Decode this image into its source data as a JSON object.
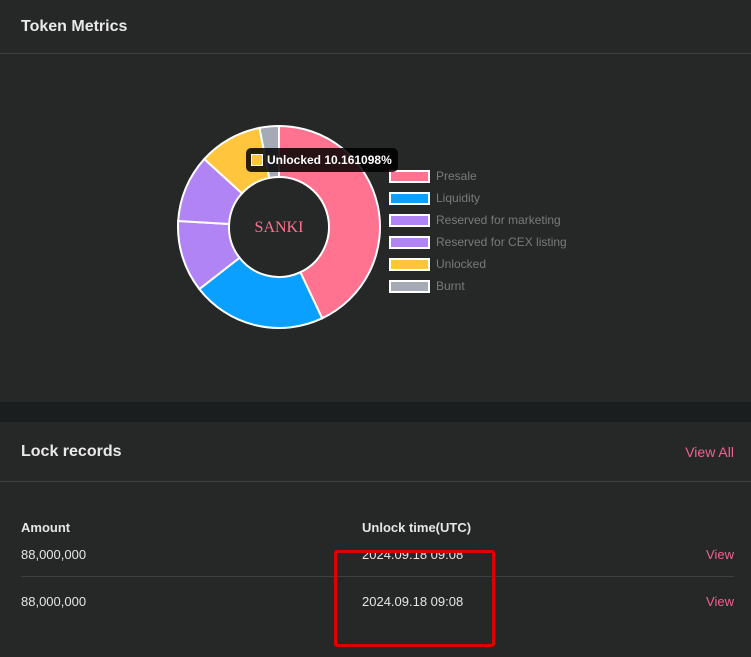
{
  "metrics": {
    "title": "Token Metrics",
    "center_label": "SANKI",
    "tooltip": {
      "label": "Unlocked 10.161098%",
      "color": "#ffc53d"
    }
  },
  "chart_data": {
    "type": "pie",
    "donut": true,
    "title": "",
    "center_text": "SANKI",
    "legend_position": "right",
    "slices": [
      {
        "name": "Presale",
        "value": 43.0,
        "color": "#ff7390"
      },
      {
        "name": "Liquidity",
        "value": 21.5,
        "color": "#0aa0ff"
      },
      {
        "name": "Reserved for marketing",
        "value": 11.5,
        "color": "#b184f5"
      },
      {
        "name": "Reserved for CEX listing",
        "value": 10.8,
        "color": "#b184f5"
      },
      {
        "name": "Unlocked",
        "value": 10.161098,
        "color": "#ffc53d"
      },
      {
        "name": "Burnt",
        "value": 3.1,
        "color": "#a4abb5"
      }
    ]
  },
  "lock": {
    "title": "Lock records",
    "view_all": "View All",
    "columns": {
      "amount": "Amount",
      "unlock_time": "Unlock time(UTC)"
    },
    "rows": [
      {
        "amount": "88,000,000",
        "time": "2024.09.18 09:08",
        "action": "View"
      },
      {
        "amount": "88,000,000",
        "time": "2024.09.18 09:08",
        "action": "View"
      }
    ]
  },
  "colors": {
    "accent": "#f06292",
    "highlight_border": "#e00000"
  }
}
